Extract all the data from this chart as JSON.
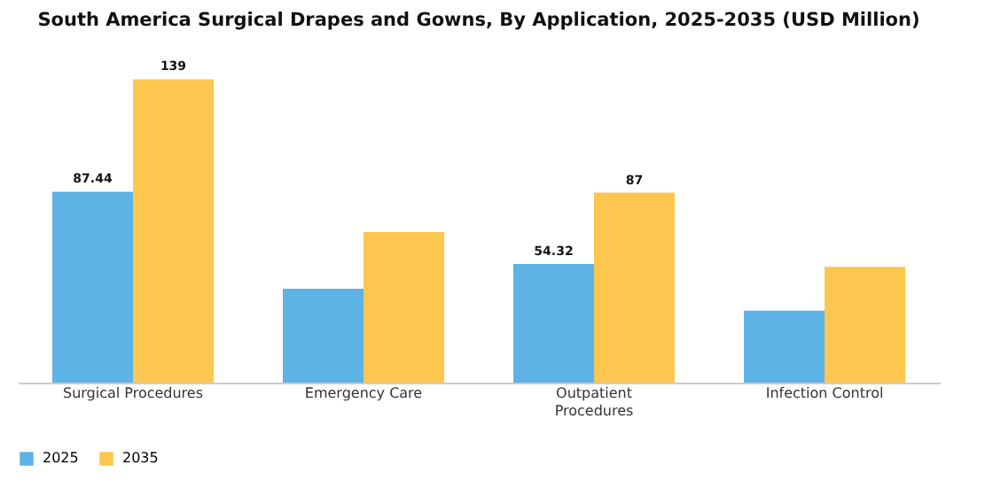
{
  "chart_data": {
    "type": "bar",
    "title": "South America Surgical Drapes and Gowns, By Application, 2025-2035 (USD Million)",
    "categories": [
      "Surgical Procedures",
      "Emergency Care",
      "Outpatient Procedures",
      "Infection Control"
    ],
    "series": [
      {
        "name": "2025",
        "color": "#5db3e6",
        "values": [
          87.44,
          43,
          54.32,
          33
        ],
        "value_labels": [
          "87.44",
          null,
          "54.32",
          null
        ]
      },
      {
        "name": "2035",
        "color": "#fdc64e",
        "values": [
          139,
          69,
          87,
          53
        ],
        "value_labels": [
          "139",
          null,
          "87",
          null
        ]
      }
    ],
    "legend": "bottom",
    "grid": false
  }
}
